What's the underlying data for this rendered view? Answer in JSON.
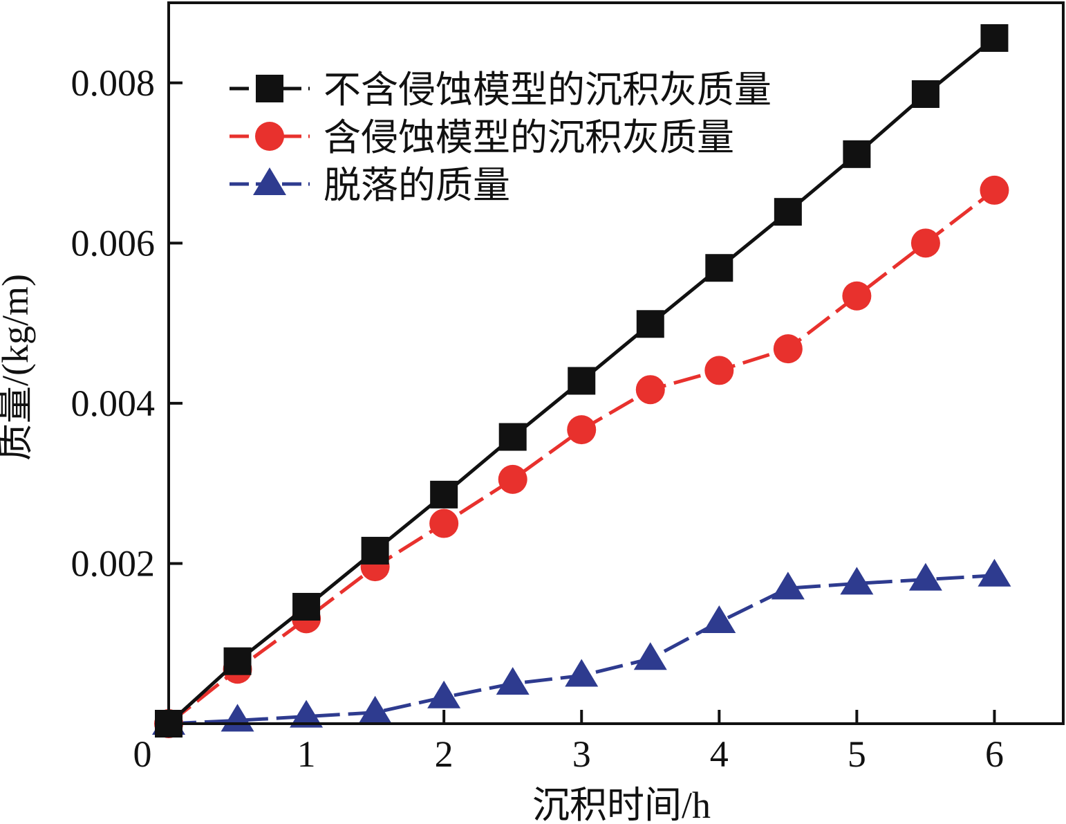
{
  "chart_data": {
    "type": "line",
    "xlabel": "沉积时间/h",
    "ylabel": "质量/(kg/m)",
    "xlim": [
      0,
      6.5
    ],
    "ylim": [
      0,
      0.009
    ],
    "x_ticks": [
      0,
      1,
      2,
      3,
      4,
      5,
      6
    ],
    "x_tick_labels": [
      "0",
      "1",
      "2",
      "3",
      "4",
      "5",
      "6"
    ],
    "y_ticks": [
      0.002,
      0.004,
      0.006,
      0.008
    ],
    "y_tick_labels": [
      "0.002",
      "0.004",
      "0.006",
      "0.008"
    ],
    "legend_position": "top-left",
    "series": [
      {
        "name": "不含侵蚀模型的沉积灰质量",
        "color": "#111111",
        "marker": "square",
        "line": "solid",
        "x": [
          0,
          0.5,
          1,
          1.5,
          2,
          2.5,
          3,
          3.5,
          4,
          4.5,
          5,
          5.5,
          6
        ],
        "values": [
          0.0,
          0.00078,
          0.00146,
          0.00216,
          0.00286,
          0.00358,
          0.00428,
          0.00499,
          0.00569,
          0.00639,
          0.00711,
          0.00786,
          0.00856
        ]
      },
      {
        "name": "含侵蚀模型的沉积灰质量",
        "color": "#e8312d",
        "marker": "circle",
        "line": "dashed",
        "x": [
          0,
          0.5,
          1,
          1.5,
          2,
          2.5,
          3,
          3.5,
          4,
          4.5,
          5,
          5.5,
          6
        ],
        "values": [
          0.0,
          0.00068,
          0.00131,
          0.00196,
          0.0025,
          0.00305,
          0.00367,
          0.00417,
          0.00441,
          0.00468,
          0.00534,
          0.006,
          0.00666
        ]
      },
      {
        "name": "脱落的质量",
        "color": "#2e3b8f",
        "marker": "triangle",
        "line": "dashed",
        "x": [
          0,
          0.5,
          1,
          1.5,
          2,
          2.5,
          3,
          3.5,
          4,
          4.5,
          5,
          5.5,
          6
        ],
        "values": [
          0.0,
          4e-05,
          9e-05,
          0.00014,
          0.00033,
          0.0005,
          0.0006,
          0.00081,
          0.00127,
          0.00169,
          0.00175,
          0.0018,
          0.00185
        ]
      }
    ]
  }
}
